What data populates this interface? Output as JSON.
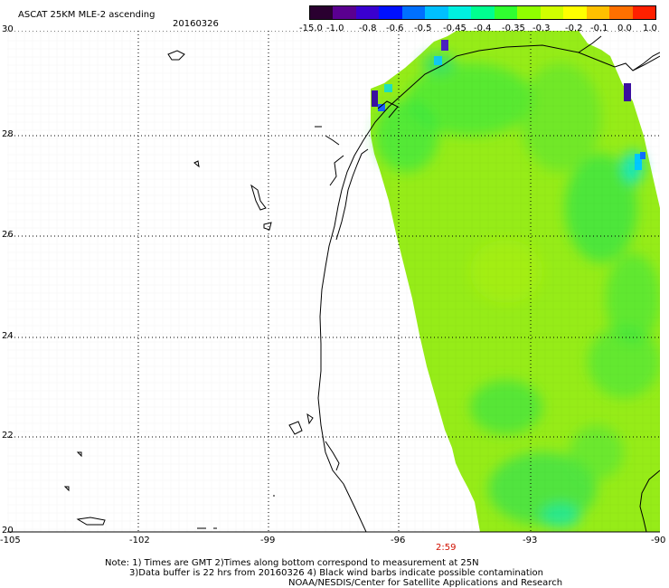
{
  "header": {
    "title": "ASCAT 25KM MLE-2 ascending",
    "date": "20160326"
  },
  "colorbar": {
    "colors": [
      "#2a0030",
      "#5a0090",
      "#3a00d0",
      "#0010ff",
      "#0070ff",
      "#00c0ff",
      "#00f0e0",
      "#00ff90",
      "#30ff30",
      "#90ff00",
      "#d0ff00",
      "#ffff00",
      "#ffc000",
      "#ff7000",
      "#ff2000"
    ],
    "labels": [
      "-15.0",
      "-1.0",
      "-0.8",
      "-0.6",
      "-0.5",
      "-0.45",
      "-0.4",
      "-0.35",
      "-0.3",
      "-0.2",
      "-0.1",
      "0.0",
      "1.0"
    ]
  },
  "axes": {
    "lat_labels": [
      "30",
      "28",
      "26",
      "24",
      "22",
      "20"
    ],
    "lon_labels": [
      "-105",
      "-102",
      "-99",
      "-96",
      "-93",
      "-90"
    ]
  },
  "time_marker": "2:59",
  "notes": {
    "line1": "Note: 1) Times are GMT 2)Times along bottom correspond to measurement at 25N",
    "line2": "3)Data buffer is 22 hrs from 20160326 4) Black wind barbs indicate possible contamination",
    "line3": "NOAA/NESDIS/Center for Satellite Applications and Research"
  }
}
